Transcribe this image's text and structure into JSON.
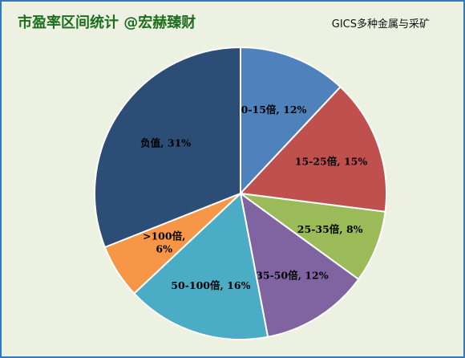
{
  "chart_data": {
    "type": "pie",
    "title": "市盈率区间统计 @宏赫臻财",
    "subtitle": "GICS多种金属与采矿",
    "slices": [
      {
        "label": "0-15倍",
        "value": 12,
        "label_text": "0-15倍, 12%",
        "color": "#4f81bd"
      },
      {
        "label": "15-25倍",
        "value": 15,
        "label_text": "15-25倍, 15%",
        "color": "#c0504d"
      },
      {
        "label": "25-35倍",
        "value": 8,
        "label_text": "25-35倍, 8%",
        "color": "#9bbb59"
      },
      {
        "label": "35-50倍",
        "value": 12,
        "label_text": "35-50倍, 12%",
        "color": "#8064a2"
      },
      {
        "label": "50-100倍",
        "value": 16,
        "label_text": "50-100倍, 16%",
        "color": "#4bacc6"
      },
      {
        "label": ">100倍",
        "value": 6,
        "label_text": ">100倍,\n6%",
        "color": "#f79646"
      },
      {
        "label": "负值",
        "value": 31,
        "label_text": "负值, 31%",
        "color": "#2c4d75"
      }
    ]
  }
}
